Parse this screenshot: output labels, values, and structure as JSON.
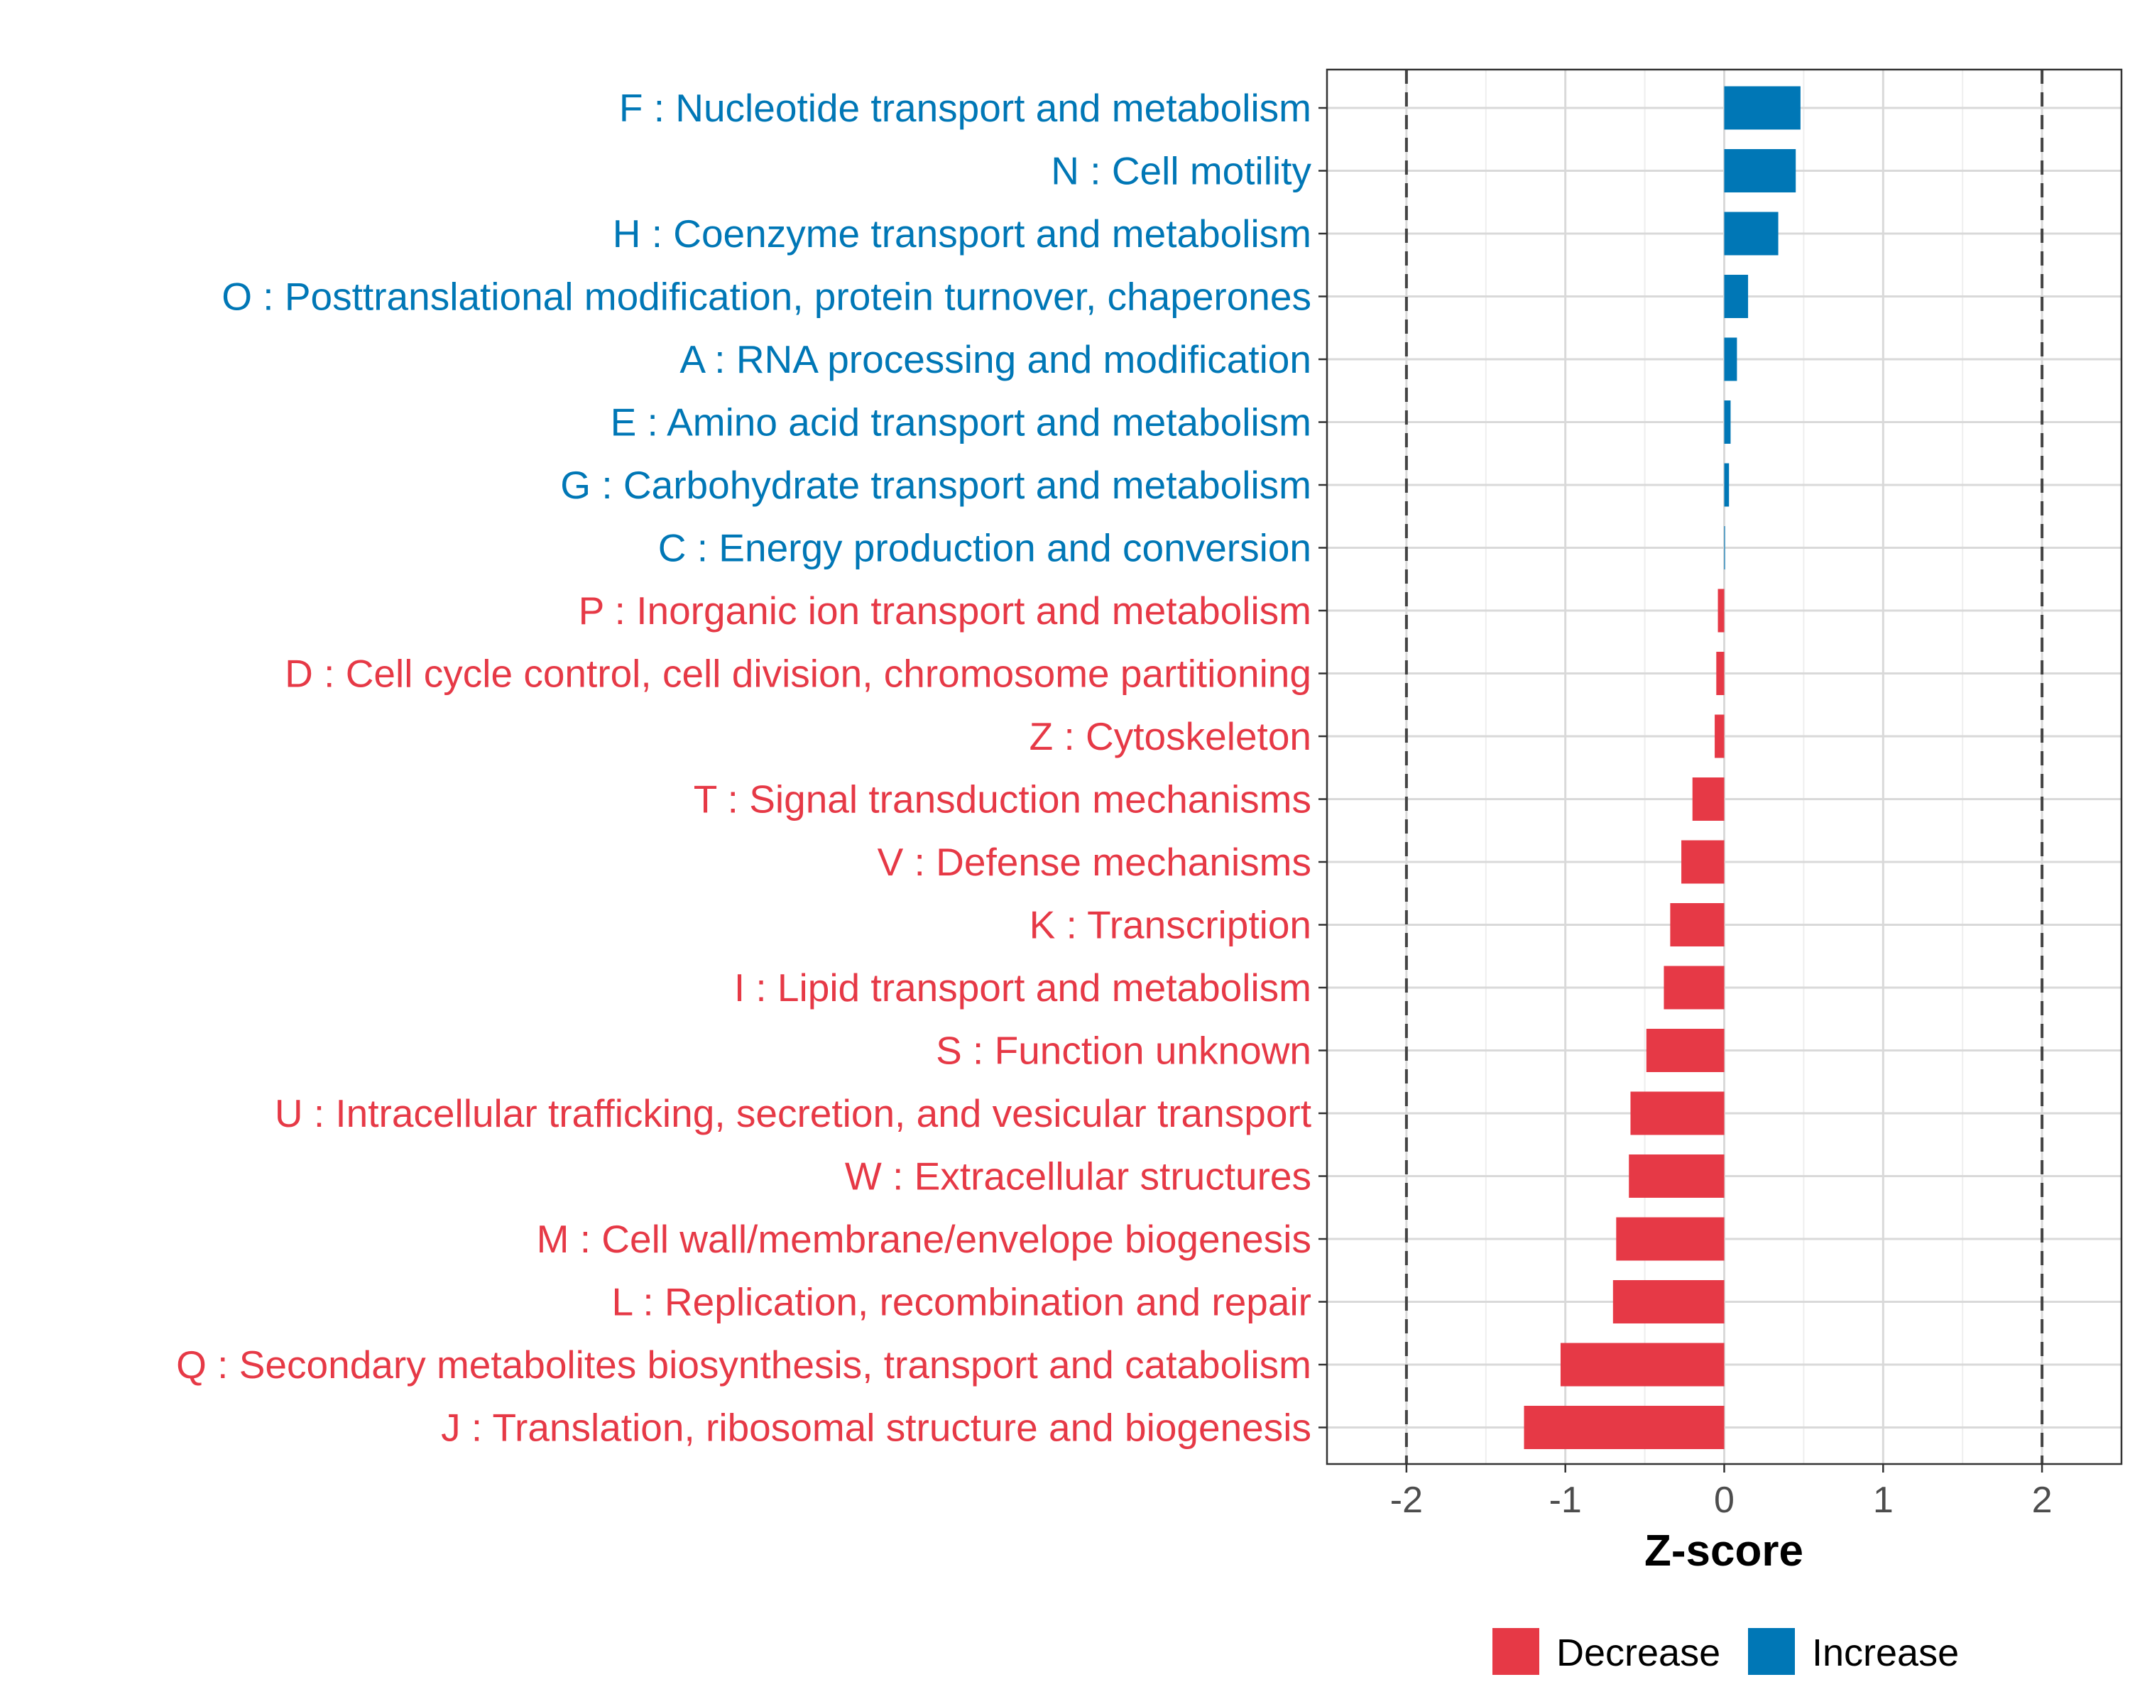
{
  "chart_data": {
    "type": "bar",
    "orientation": "horizontal",
    "title": "",
    "xlabel": "Z-score",
    "ylabel": "",
    "xlim": [
      -2.5,
      2.5
    ],
    "xticks": [
      -2,
      -1,
      0,
      1,
      2
    ],
    "xtick_labels": [
      "-2",
      "-1",
      "0",
      "1",
      "2"
    ],
    "reference_lines": [
      -2,
      2
    ],
    "grid": true,
    "colors": {
      "Decrease": "#E63946",
      "Increase": "#0077B6"
    },
    "legend": {
      "position": "bottom",
      "entries": [
        "Decrease",
        "Increase"
      ]
    },
    "categories": [
      "F : Nucleotide transport and metabolism",
      "N : Cell motility",
      "H : Coenzyme transport and metabolism",
      "O : Posttranslational modification, protein turnover, chaperones",
      "A : RNA processing and modification",
      "E : Amino acid transport and metabolism",
      "G : Carbohydrate transport and metabolism",
      "C : Energy production and conversion",
      "P : Inorganic ion transport and metabolism",
      "D : Cell cycle control, cell division, chromosome partitioning",
      "Z : Cytoskeleton",
      "T : Signal transduction mechanisms",
      "V : Defense mechanisms",
      "K : Transcription",
      "I : Lipid transport and metabolism",
      "S : Function unknown",
      "U : Intracellular trafficking, secretion, and vesicular transport",
      "W : Extracellular structures",
      "M : Cell wall/membrane/envelope biogenesis",
      "L : Replication, recombination and repair",
      "Q : Secondary metabolites biosynthesis, transport and catabolism",
      "J : Translation, ribosomal structure and biogenesis"
    ],
    "values": [
      0.48,
      0.45,
      0.34,
      0.15,
      0.08,
      0.04,
      0.03,
      0.005,
      -0.04,
      -0.05,
      -0.06,
      -0.2,
      -0.27,
      -0.34,
      -0.38,
      -0.49,
      -0.59,
      -0.6,
      -0.68,
      -0.7,
      -1.03,
      -1.26
    ],
    "groups": [
      "Increase",
      "Increase",
      "Increase",
      "Increase",
      "Increase",
      "Increase",
      "Increase",
      "Increase",
      "Decrease",
      "Decrease",
      "Decrease",
      "Decrease",
      "Decrease",
      "Decrease",
      "Decrease",
      "Decrease",
      "Decrease",
      "Decrease",
      "Decrease",
      "Decrease",
      "Decrease",
      "Decrease"
    ]
  }
}
